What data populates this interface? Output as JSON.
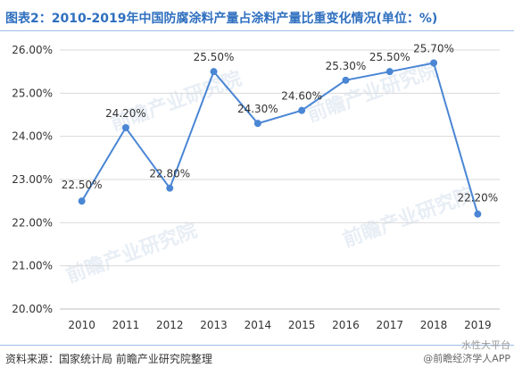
{
  "title": "图表2：2010-2019年中国防腐涂料产量占涂料产量比重变化情况(单位：%)",
  "source": "资料来源：国家统计局 前瞻产业研究院整理",
  "watermark": {
    "center": "前瞻产业研究院",
    "bottom_right": "@前瞻经济学人APP",
    "bottom_right_top": "水性大平台"
  },
  "colors": {
    "line": "#4a86d4",
    "title": "#2f6fbf",
    "grid": "#d9d9d9"
  },
  "chart_data": {
    "type": "line",
    "categories": [
      "2010",
      "2011",
      "2012",
      "2013",
      "2014",
      "2015",
      "2016",
      "2017",
      "2018",
      "2019"
    ],
    "series": [
      {
        "values": [
          22.5,
          24.2,
          22.8,
          25.5,
          24.3,
          24.6,
          25.3,
          25.5,
          25.7,
          22.2
        ],
        "labels": [
          "22.50%",
          "24.20%",
          "22.80%",
          "25.50%",
          "24.30%",
          "24.60%",
          "25.30%",
          "25.50%",
          "25.70%",
          "22.20%"
        ]
      }
    ],
    "y_ticks": [
      20,
      21,
      22,
      23,
      24,
      25,
      26
    ],
    "y_tick_labels": [
      "20.00%",
      "21.00%",
      "22.00%",
      "23.00%",
      "24.00%",
      "25.00%",
      "26.00%"
    ],
    "ylim": [
      20,
      26
    ],
    "grid": true,
    "legend": "none"
  }
}
